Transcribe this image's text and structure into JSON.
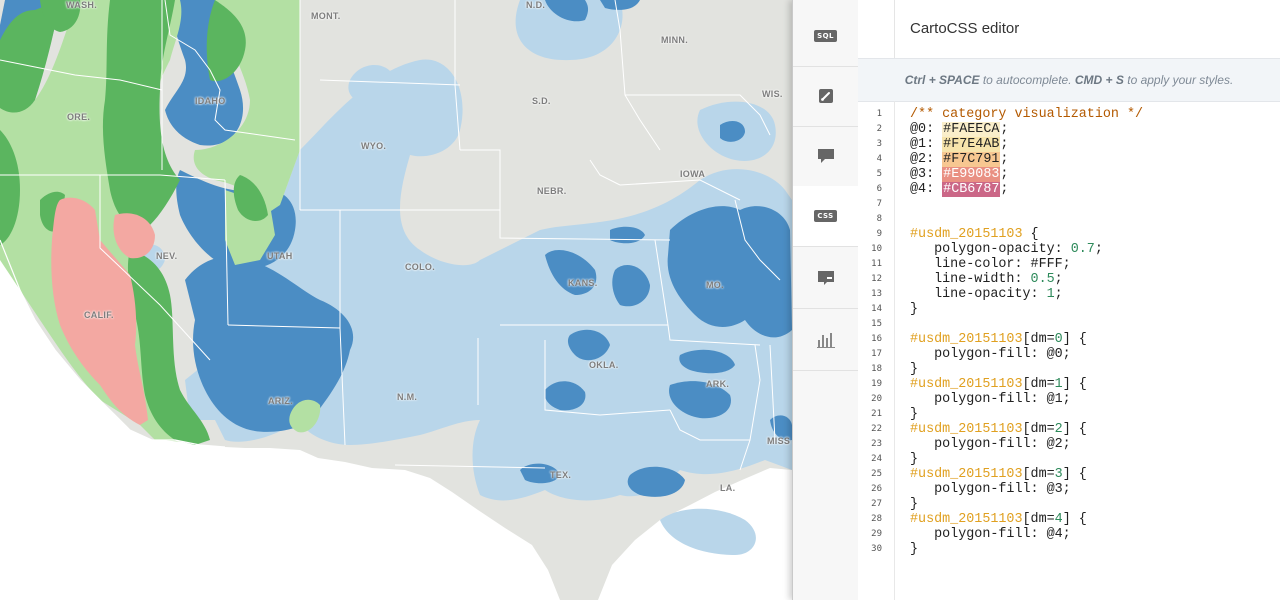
{
  "map": {
    "state_labels": [
      {
        "id": "wash",
        "text": "WASH."
      },
      {
        "id": "mont",
        "text": "MONT."
      },
      {
        "id": "nd",
        "text": "N.D."
      },
      {
        "id": "minn",
        "text": "MINN."
      },
      {
        "id": "wis",
        "text": "WIS."
      },
      {
        "id": "idaho",
        "text": "IDAHO"
      },
      {
        "id": "ore",
        "text": "ORE."
      },
      {
        "id": "sd",
        "text": "S.D."
      },
      {
        "id": "wyo",
        "text": "WYO."
      },
      {
        "id": "iowa",
        "text": "IOWA"
      },
      {
        "id": "nebr",
        "text": "NEBR."
      },
      {
        "id": "nev",
        "text": "NEV."
      },
      {
        "id": "utah",
        "text": "UTAH"
      },
      {
        "id": "colo",
        "text": "COLO."
      },
      {
        "id": "kans",
        "text": "KANS."
      },
      {
        "id": "mo",
        "text": "MO."
      },
      {
        "id": "calif",
        "text": "CALIF."
      },
      {
        "id": "okla",
        "text": "OKLA."
      },
      {
        "id": "ark",
        "text": "ARK."
      },
      {
        "id": "ariz",
        "text": "ARIZ."
      },
      {
        "id": "nm",
        "text": "N.M."
      },
      {
        "id": "miss",
        "text": "MISS"
      },
      {
        "id": "tex",
        "text": "TEX."
      },
      {
        "id": "la",
        "text": "LA."
      }
    ],
    "colors": {
      "land": "#e2e3df",
      "light_blue": "#b9d6ea",
      "blue": "#4b8dc4",
      "light_green": "#b3e0a3",
      "green": "#5bb55f",
      "pink": "#f3a8a2",
      "border": "#ffffff"
    }
  },
  "rail": {
    "buttons": [
      {
        "id": "sql",
        "icon": "sql-icon",
        "label": "SQL"
      },
      {
        "id": "wizard",
        "icon": "paint-brush-icon"
      },
      {
        "id": "infowindow",
        "icon": "speech-bubble-icon"
      },
      {
        "id": "css",
        "icon": "css-icon",
        "label": "CSS",
        "active": true
      },
      {
        "id": "legends",
        "icon": "legend-icon"
      },
      {
        "id": "filters",
        "icon": "bar-chart-icon"
      }
    ]
  },
  "editor": {
    "title": "CartoCSS editor",
    "hint": {
      "k1": "Ctrl + SPACE",
      "t1": " to autocomplete. ",
      "k2": "CMD + S",
      "t2": " to apply your styles."
    },
    "lines": [
      {
        "n": "1",
        "parts": [
          {
            "t": "/** category visualization */",
            "c": "cm"
          }
        ]
      },
      {
        "n": "2",
        "parts": [
          {
            "t": "@0: "
          },
          {
            "t": "#FAEECA",
            "bg": "#FAEECA",
            "fg": "#222"
          },
          {
            "t": ";"
          }
        ]
      },
      {
        "n": "3",
        "parts": [
          {
            "t": "@1: "
          },
          {
            "t": "#F7E4AB",
            "bg": "#F7E4AB",
            "fg": "#222"
          },
          {
            "t": ";"
          }
        ]
      },
      {
        "n": "4",
        "parts": [
          {
            "t": "@2: "
          },
          {
            "t": "#F7C791",
            "bg": "#F7C791",
            "fg": "#222"
          },
          {
            "t": ";"
          }
        ]
      },
      {
        "n": "5",
        "parts": [
          {
            "t": "@3: "
          },
          {
            "t": "#E99083",
            "bg": "#E99083",
            "fg": "#ffffff"
          },
          {
            "t": ";"
          }
        ]
      },
      {
        "n": "6",
        "parts": [
          {
            "t": "@4: "
          },
          {
            "t": "#CB6787",
            "bg": "#CB6787",
            "fg": "#ffffff"
          },
          {
            "t": ";"
          }
        ]
      },
      {
        "n": "7",
        "parts": []
      },
      {
        "n": "8",
        "parts": []
      },
      {
        "n": "9",
        "parts": [
          {
            "t": "#usdm_20151103",
            "c": "sel"
          },
          {
            "t": " {"
          }
        ]
      },
      {
        "n": "10",
        "parts": [
          {
            "t": "   polygon-opacity: "
          },
          {
            "t": "0.7",
            "c": "num"
          },
          {
            "t": ";"
          }
        ]
      },
      {
        "n": "11",
        "parts": [
          {
            "t": "   line-color: #FFF;"
          }
        ]
      },
      {
        "n": "12",
        "parts": [
          {
            "t": "   line-width: "
          },
          {
            "t": "0.5",
            "c": "num"
          },
          {
            "t": ";"
          }
        ]
      },
      {
        "n": "13",
        "parts": [
          {
            "t": "   line-opacity: "
          },
          {
            "t": "1",
            "c": "num"
          },
          {
            "t": ";"
          }
        ]
      },
      {
        "n": "14",
        "parts": [
          {
            "t": "}"
          }
        ]
      },
      {
        "n": "15",
        "parts": []
      },
      {
        "n": "16",
        "parts": [
          {
            "t": "#usdm_20151103",
            "c": "sel"
          },
          {
            "t": "[dm="
          },
          {
            "t": "0",
            "c": "num"
          },
          {
            "t": "] {"
          }
        ]
      },
      {
        "n": "17",
        "parts": [
          {
            "t": "   polygon-fill: @0;"
          }
        ]
      },
      {
        "n": "18",
        "parts": [
          {
            "t": "}"
          }
        ]
      },
      {
        "n": "19",
        "parts": [
          {
            "t": "#usdm_20151103",
            "c": "sel"
          },
          {
            "t": "[dm="
          },
          {
            "t": "1",
            "c": "num"
          },
          {
            "t": "] {"
          }
        ]
      },
      {
        "n": "20",
        "parts": [
          {
            "t": "   polygon-fill: @1;"
          }
        ]
      },
      {
        "n": "21",
        "parts": [
          {
            "t": "}"
          }
        ]
      },
      {
        "n": "22",
        "parts": [
          {
            "t": "#usdm_20151103",
            "c": "sel"
          },
          {
            "t": "[dm="
          },
          {
            "t": "2",
            "c": "num"
          },
          {
            "t": "] {"
          }
        ]
      },
      {
        "n": "23",
        "parts": [
          {
            "t": "   polygon-fill: @2;"
          }
        ]
      },
      {
        "n": "24",
        "parts": [
          {
            "t": "}"
          }
        ]
      },
      {
        "n": "25",
        "parts": [
          {
            "t": "#usdm_20151103",
            "c": "sel"
          },
          {
            "t": "[dm="
          },
          {
            "t": "3",
            "c": "num"
          },
          {
            "t": "] {"
          }
        ]
      },
      {
        "n": "26",
        "parts": [
          {
            "t": "   polygon-fill: @3;"
          }
        ]
      },
      {
        "n": "27",
        "parts": [
          {
            "t": "}"
          }
        ]
      },
      {
        "n": "28",
        "parts": [
          {
            "t": "#usdm_20151103",
            "c": "sel"
          },
          {
            "t": "[dm="
          },
          {
            "t": "4",
            "c": "num"
          },
          {
            "t": "] {"
          }
        ]
      },
      {
        "n": "29",
        "parts": [
          {
            "t": "   polygon-fill: @4;"
          }
        ]
      },
      {
        "n": "30",
        "parts": [
          {
            "t": "}"
          }
        ]
      }
    ]
  }
}
